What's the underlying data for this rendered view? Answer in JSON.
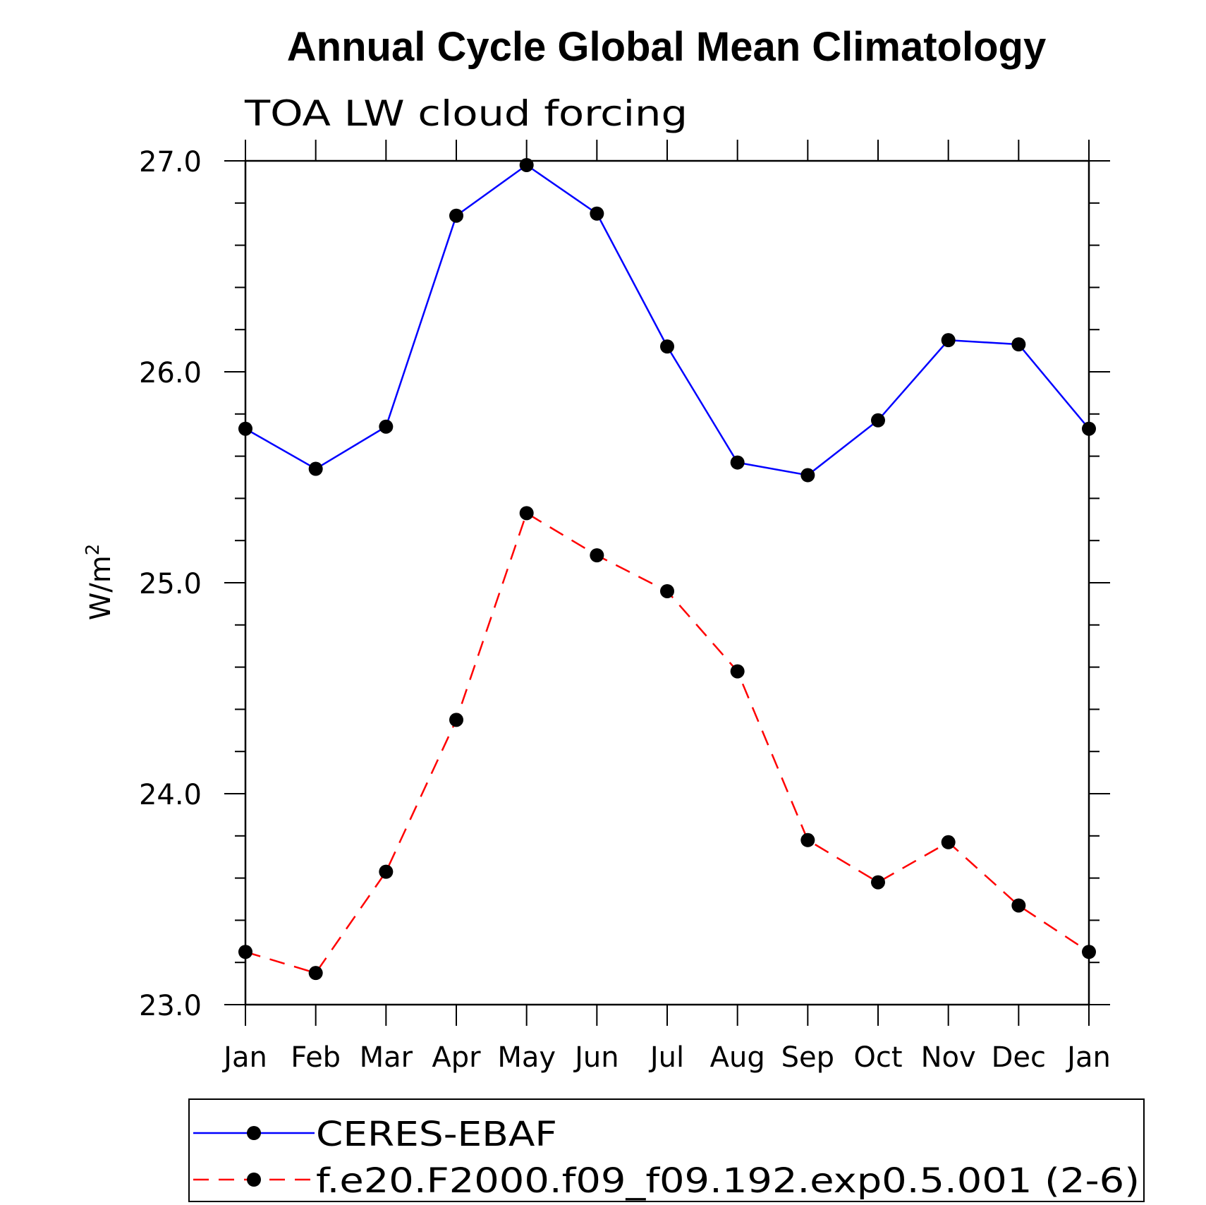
{
  "chart_data": {
    "type": "line",
    "title": "Annual Cycle Global Mean Climatology",
    "subtitle": "TOA LW cloud forcing",
    "ylabel": "W/m",
    "ylabel_sup": "2",
    "xlabel": "",
    "categories": [
      "Jan",
      "Feb",
      "Mar",
      "Apr",
      "May",
      "Jun",
      "Jul",
      "Aug",
      "Sep",
      "Oct",
      "Nov",
      "Dec",
      "Jan"
    ],
    "ylim": [
      23.0,
      27.0
    ],
    "yticks": [
      "23.0",
      "24.0",
      "25.0",
      "26.0",
      "27.0"
    ],
    "y_minor_step": 0.2,
    "grid": false,
    "legend_position": "bottom",
    "series": [
      {
        "name": "CERES-EBAF",
        "color": "#0000ff",
        "dash": "solid",
        "marker": "filled-circle",
        "values": [
          25.73,
          25.54,
          25.74,
          26.74,
          26.98,
          26.75,
          26.12,
          25.57,
          25.51,
          25.77,
          26.15,
          26.13,
          25.73
        ]
      },
      {
        "name": "f.e20.F2000.f09_f09.192.exp0.5.001 (2-6)",
        "color": "#ff0000",
        "dash": "dashed",
        "marker": "filled-circle",
        "values": [
          23.25,
          23.15,
          23.63,
          24.35,
          25.33,
          25.13,
          24.96,
          24.58,
          23.78,
          23.58,
          23.77,
          23.47,
          23.25
        ]
      }
    ]
  }
}
